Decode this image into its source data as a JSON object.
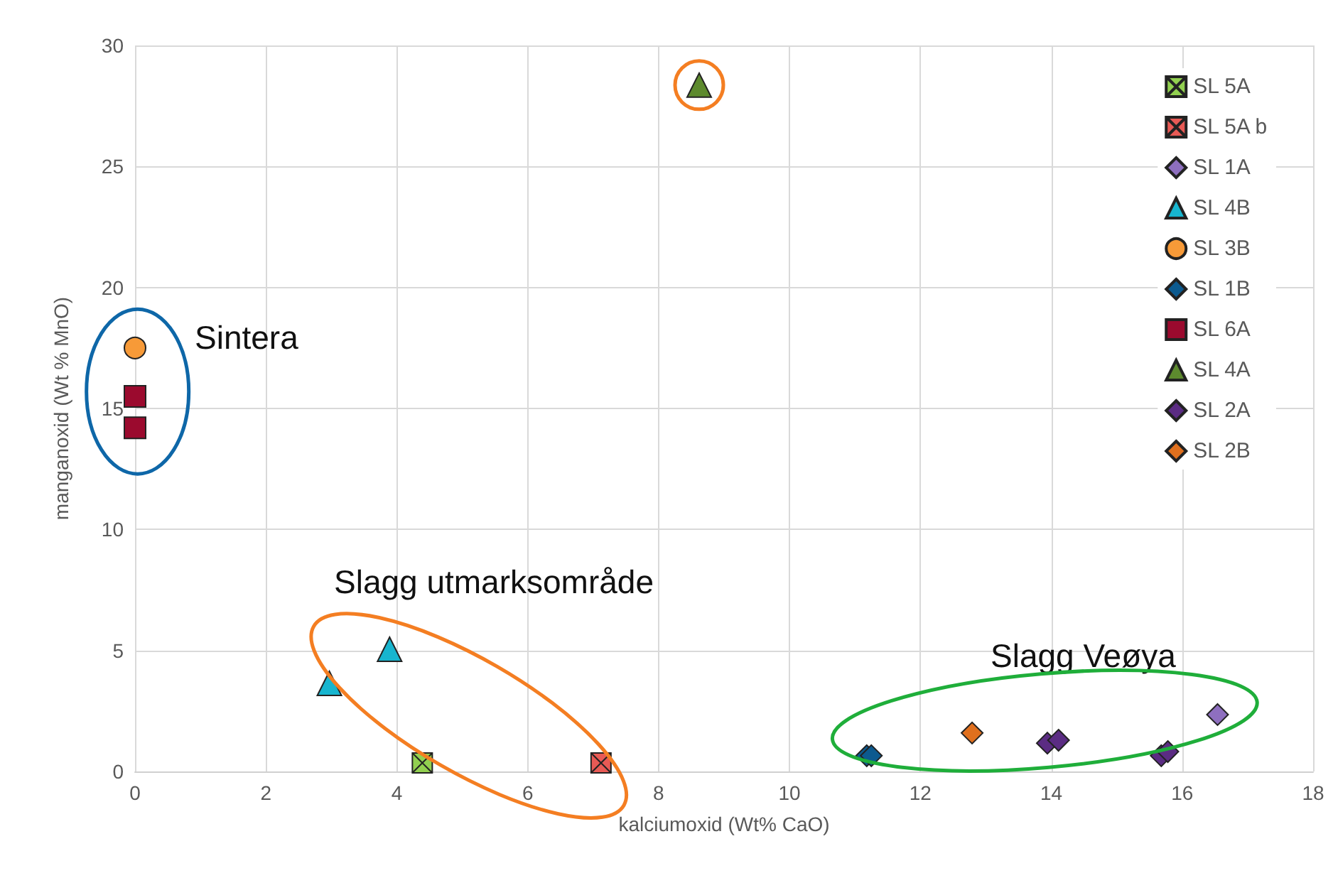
{
  "chart_data": {
    "type": "scatter",
    "xlabel": "kalciumoxid (Wt% CaO)",
    "ylabel": "manganoxid (Wt % MnO)",
    "xlim": [
      0,
      18
    ],
    "xticks": [
      0,
      2,
      4,
      6,
      8,
      10,
      12,
      14,
      16,
      18
    ],
    "ylim": [
      0,
      30
    ],
    "yticks": [
      0,
      5,
      10,
      15,
      20,
      25,
      30
    ],
    "grid": true,
    "legend": "top right",
    "annotations": [
      "Sintera",
      "Slagg utmarksområde",
      "Slagg Veøya"
    ],
    "series": [
      {
        "name": "SL 5A",
        "color": "#92d050",
        "marker": "cross",
        "x": [
          4.39
        ],
        "values": [
          0.35
        ]
      },
      {
        "name": "SL 5A b",
        "color": "#e85a55",
        "marker": "cross",
        "x": [
          7.12
        ],
        "values": [
          0.35
        ]
      },
      {
        "name": "SL 1A",
        "color": "#8e6fbf",
        "marker": "diamond",
        "x": [
          16.54
        ],
        "values": [
          2.35
        ]
      },
      {
        "name": "SL 4B",
        "color": "#17b5cf",
        "marker": "triangle",
        "x": [
          2.97,
          3.89
        ],
        "values": [
          3.64,
          5.05
        ]
      },
      {
        "name": "SL 3B",
        "color": "#f79a38",
        "marker": "circle",
        "x": [
          0
        ],
        "values": [
          17.5
        ]
      },
      {
        "name": "SL 1B",
        "color": "#0c5a8f",
        "marker": "diamond",
        "x": [
          11.18,
          11.25
        ],
        "values": [
          0.65,
          0.65
        ]
      },
      {
        "name": "SL 6A",
        "color": "#9b0a2e",
        "marker": "square",
        "x": [
          0,
          0
        ],
        "values": [
          15.5,
          14.2
        ]
      },
      {
        "name": "SL 4A",
        "color": "#5d8a2e",
        "marker": "triangle",
        "x": [
          8.62
        ],
        "values": [
          28.36
        ]
      },
      {
        "name": "SL 2A",
        "color": "#5b2c83",
        "marker": "diamond",
        "x": [
          13.94,
          14.11,
          15.68,
          15.78
        ],
        "values": [
          1.17,
          1.29,
          0.65,
          0.82
        ]
      },
      {
        "name": "SL 2B",
        "color": "#e0701e",
        "marker": "diamond",
        "x": [
          12.79
        ],
        "values": [
          1.59
        ]
      }
    ]
  }
}
